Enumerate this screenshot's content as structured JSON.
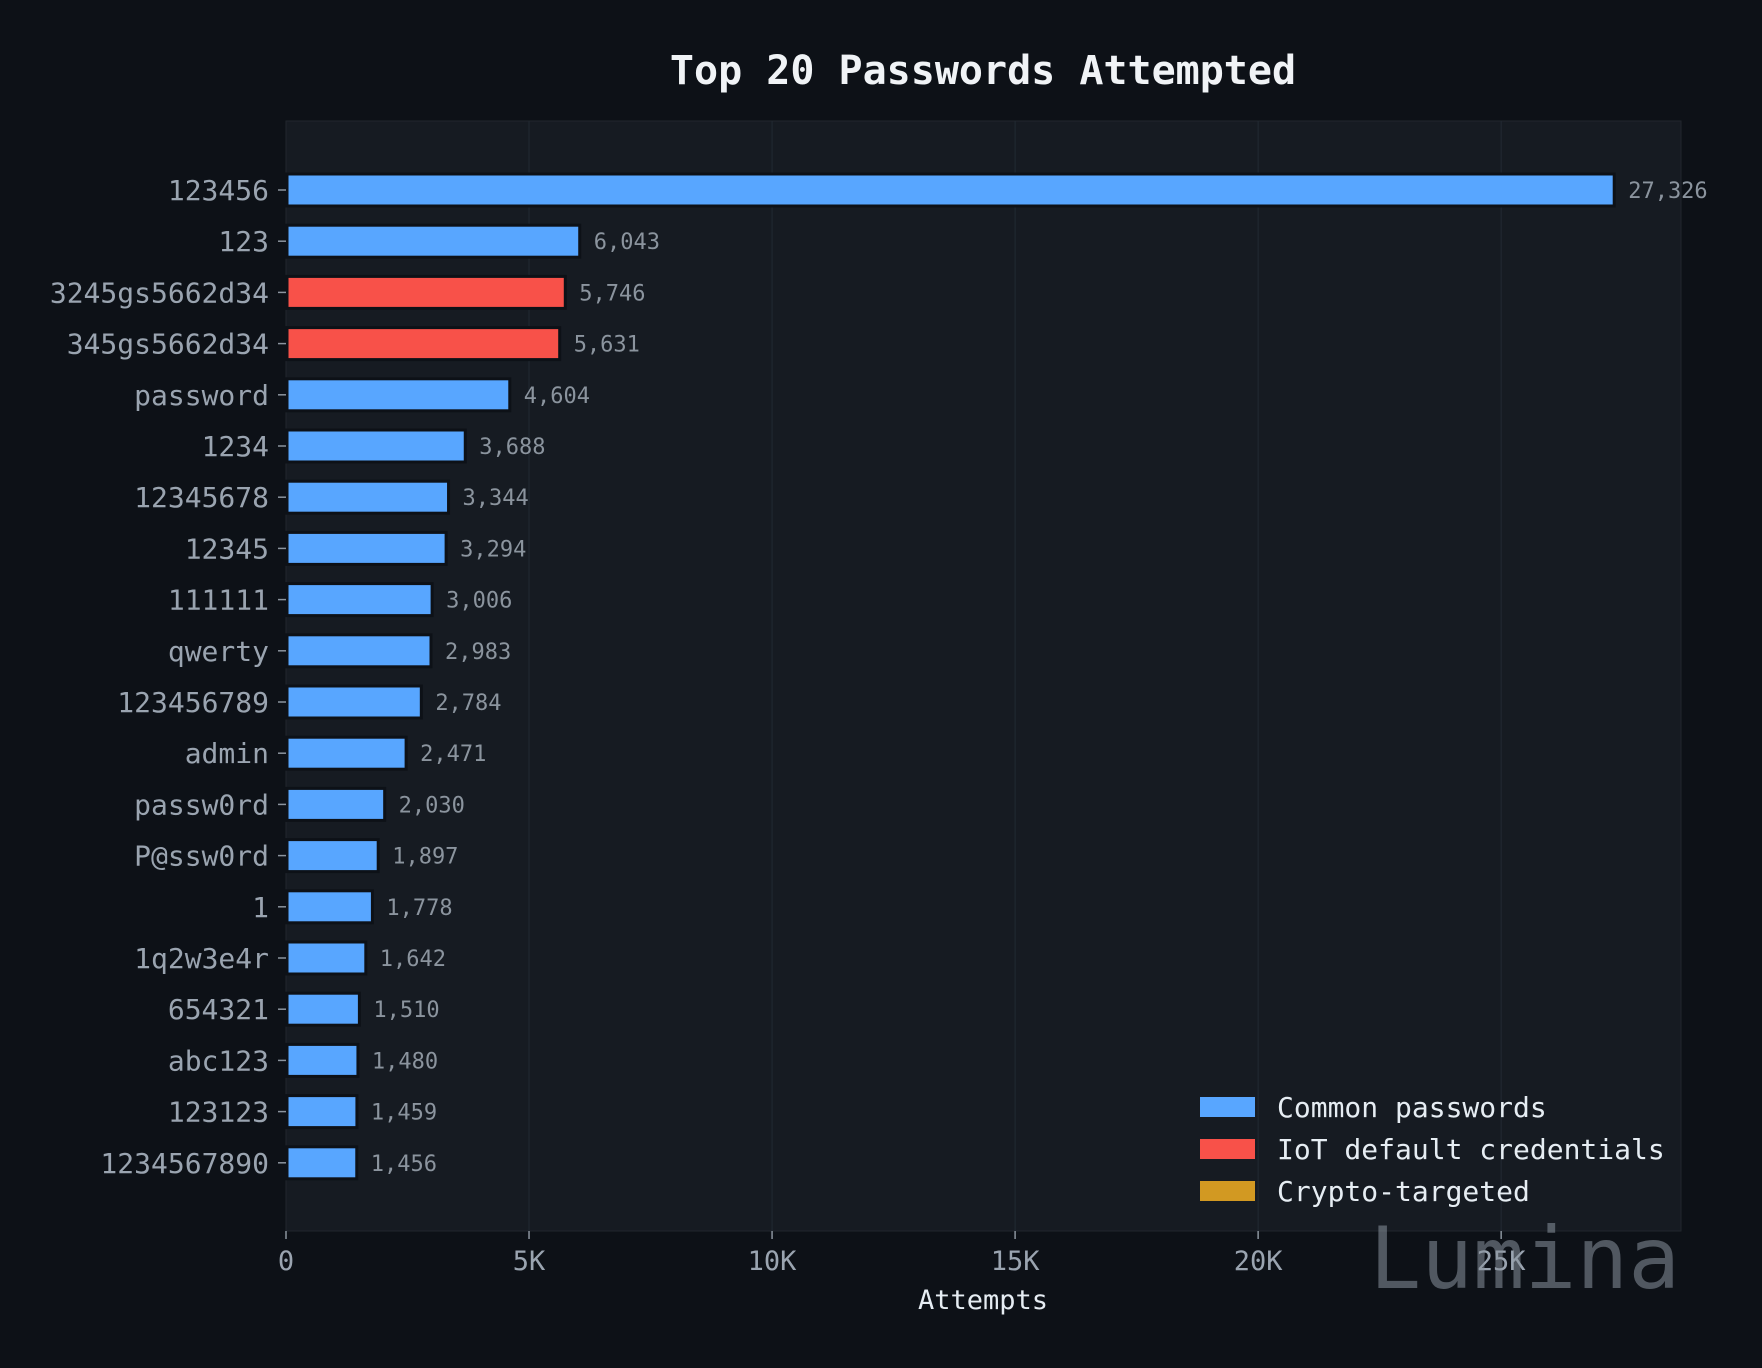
{
  "chart_data": {
    "type": "bar",
    "orientation": "horizontal",
    "title": "Top 20 Passwords Attempted",
    "xlabel": "Attempts",
    "ylabel": "",
    "xlim": [
      0,
      28700
    ],
    "xticks": [
      {
        "value": 0,
        "label": "0"
      },
      {
        "value": 5000,
        "label": "5K"
      },
      {
        "value": 10000,
        "label": "10K"
      },
      {
        "value": 15000,
        "label": "15K"
      },
      {
        "value": 20000,
        "label": "20K"
      },
      {
        "value": 25000,
        "label": "25K"
      }
    ],
    "grid": true,
    "legend_position": "bottom-right",
    "categories": [
      "123456",
      "123",
      "3245gs5662d34",
      "345gs5662d34",
      "password",
      "1234",
      "12345678",
      "12345",
      "111111",
      "qwerty",
      "123456789",
      "admin",
      "passw0rd",
      "P@ssw0rd",
      "1",
      "1q2w3e4r",
      "654321",
      "abc123",
      "123123",
      "1234567890"
    ],
    "values": [
      27326,
      6043,
      5746,
      5631,
      4604,
      3688,
      3344,
      3294,
      3006,
      2983,
      2784,
      2471,
      2030,
      1897,
      1778,
      1642,
      1510,
      1480,
      1459,
      1456
    ],
    "value_labels": [
      "27,326",
      "6,043",
      "5,746",
      "5,631",
      "4,604",
      "3,688",
      "3,344",
      "3,294",
      "3,006",
      "2,983",
      "2,784",
      "2,471",
      "2,030",
      "1,897",
      "1,778",
      "1,642",
      "1,510",
      "1,480",
      "1,459",
      "1,456"
    ],
    "groups": [
      "common",
      "common",
      "iot",
      "iot",
      "common",
      "common",
      "common",
      "common",
      "common",
      "common",
      "common",
      "common",
      "common",
      "common",
      "common",
      "common",
      "common",
      "common",
      "common",
      "common"
    ],
    "legend": [
      {
        "key": "common",
        "label": "Common passwords",
        "color": "#58a6ff"
      },
      {
        "key": "iot",
        "label": "IoT default credentials",
        "color": "#f85149"
      },
      {
        "key": "crypto",
        "label": "Crypto-targeted",
        "color": "#d29922"
      }
    ],
    "watermark": "Lumina"
  },
  "colors": {
    "background": "#0d1117",
    "plot_background": "#161b22",
    "common": "#58a6ff",
    "iot": "#f85149",
    "crypto": "#d29922"
  }
}
